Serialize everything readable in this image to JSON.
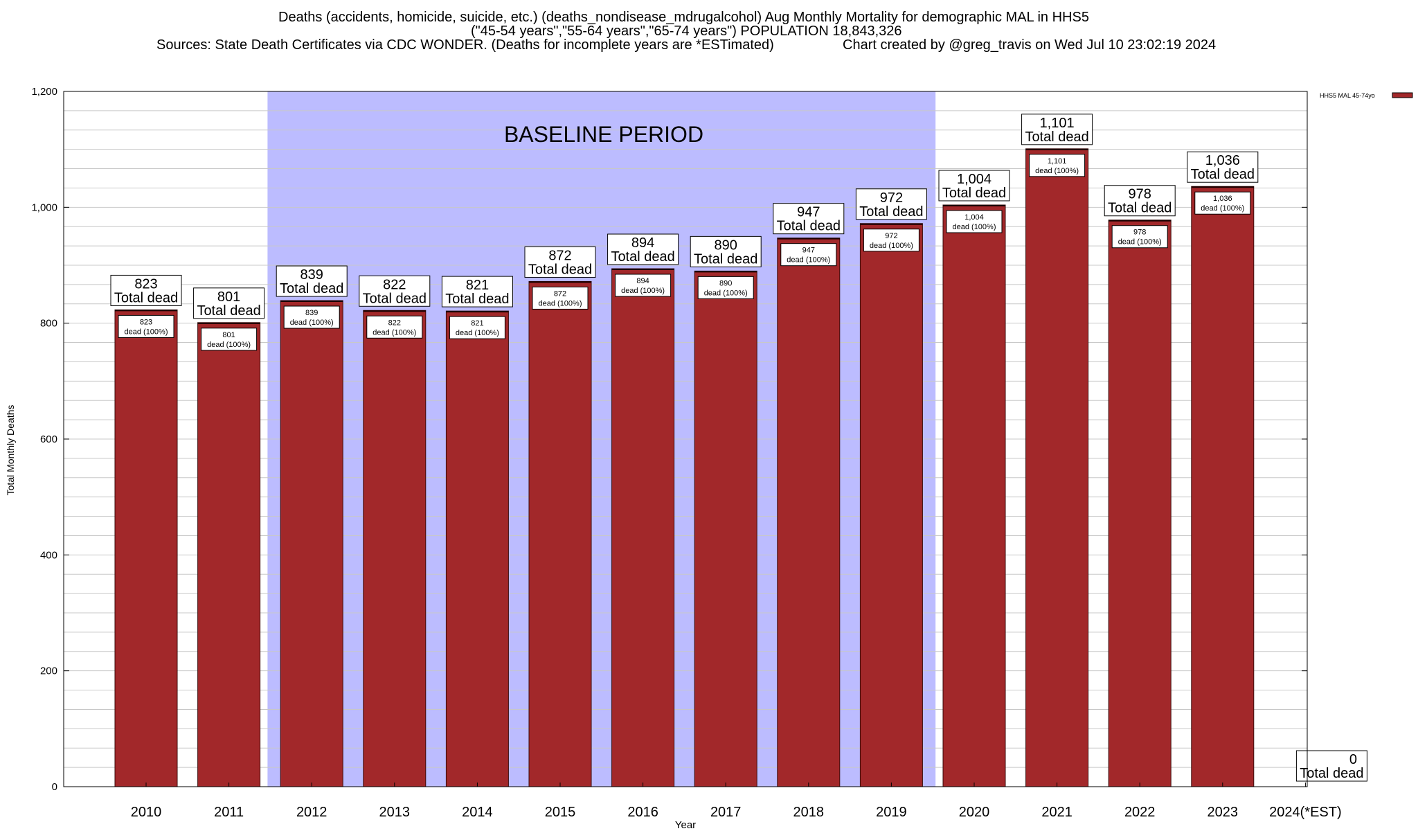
{
  "chart_data": {
    "type": "bar",
    "title_lines": [
      "Deaths (accidents, homicide, suicide, etc.) (deaths_nondisease_mdrugalcohol) Aug Monthly Mortality for demographic MAL in HHS5",
      "(\"45-54 years\",\"55-64 years\",\"65-74 years\") POPULATION 18,843,326"
    ],
    "source_text": "Sources: State Death Certificates via CDC WONDER. (Deaths for incomplete years are *ESTimated)",
    "credit_text": "Chart created by @greg_travis on Wed Jul 10 23:02:19 2024",
    "xlabel": "Year",
    "ylabel": "Total Monthly Deaths",
    "ylim": [
      0,
      1200
    ],
    "y_ticks": [
      0,
      200,
      400,
      600,
      800,
      1000,
      1200
    ],
    "y_tick_labels": [
      "0",
      "200",
      "400",
      "600",
      "800",
      "1,000",
      "1,200"
    ],
    "grid": true,
    "legend": {
      "placement": "top-right",
      "entries": [
        "HHS5 MAL 45-74yo"
      ]
    },
    "baseline_label": "BASELINE PERIOD",
    "baseline_range": [
      "2012",
      "2019"
    ],
    "categories": [
      "2010",
      "2011",
      "2012",
      "2013",
      "2014",
      "2015",
      "2016",
      "2017",
      "2018",
      "2019",
      "2020",
      "2021",
      "2022",
      "2023",
      "2024(*EST)"
    ],
    "series": [
      {
        "name": "HHS5 MAL 45-74yo",
        "values": [
          823,
          801,
          839,
          822,
          821,
          872,
          894,
          890,
          947,
          972,
          1004,
          1101,
          978,
          1036,
          0
        ]
      }
    ],
    "top_labels": [
      "823",
      "801",
      "839",
      "822",
      "821",
      "872",
      "894",
      "890",
      "947",
      "972",
      "1,004",
      "1,101",
      "978",
      "1,036",
      "0"
    ],
    "top_label_suffix": "Total dead",
    "inner_labels": [
      "823",
      "801",
      "839",
      "822",
      "821",
      "872",
      "894",
      "890",
      "947",
      "972",
      "1,004",
      "1,101",
      "978",
      "1,036",
      ""
    ],
    "inner_label_suffix": "dead (100%)",
    "colors": {
      "bar": "#a2282a",
      "bar_edge": "#3a0a0a",
      "baseline": "#bcbcff",
      "grid": "#c8c8c8"
    }
  }
}
